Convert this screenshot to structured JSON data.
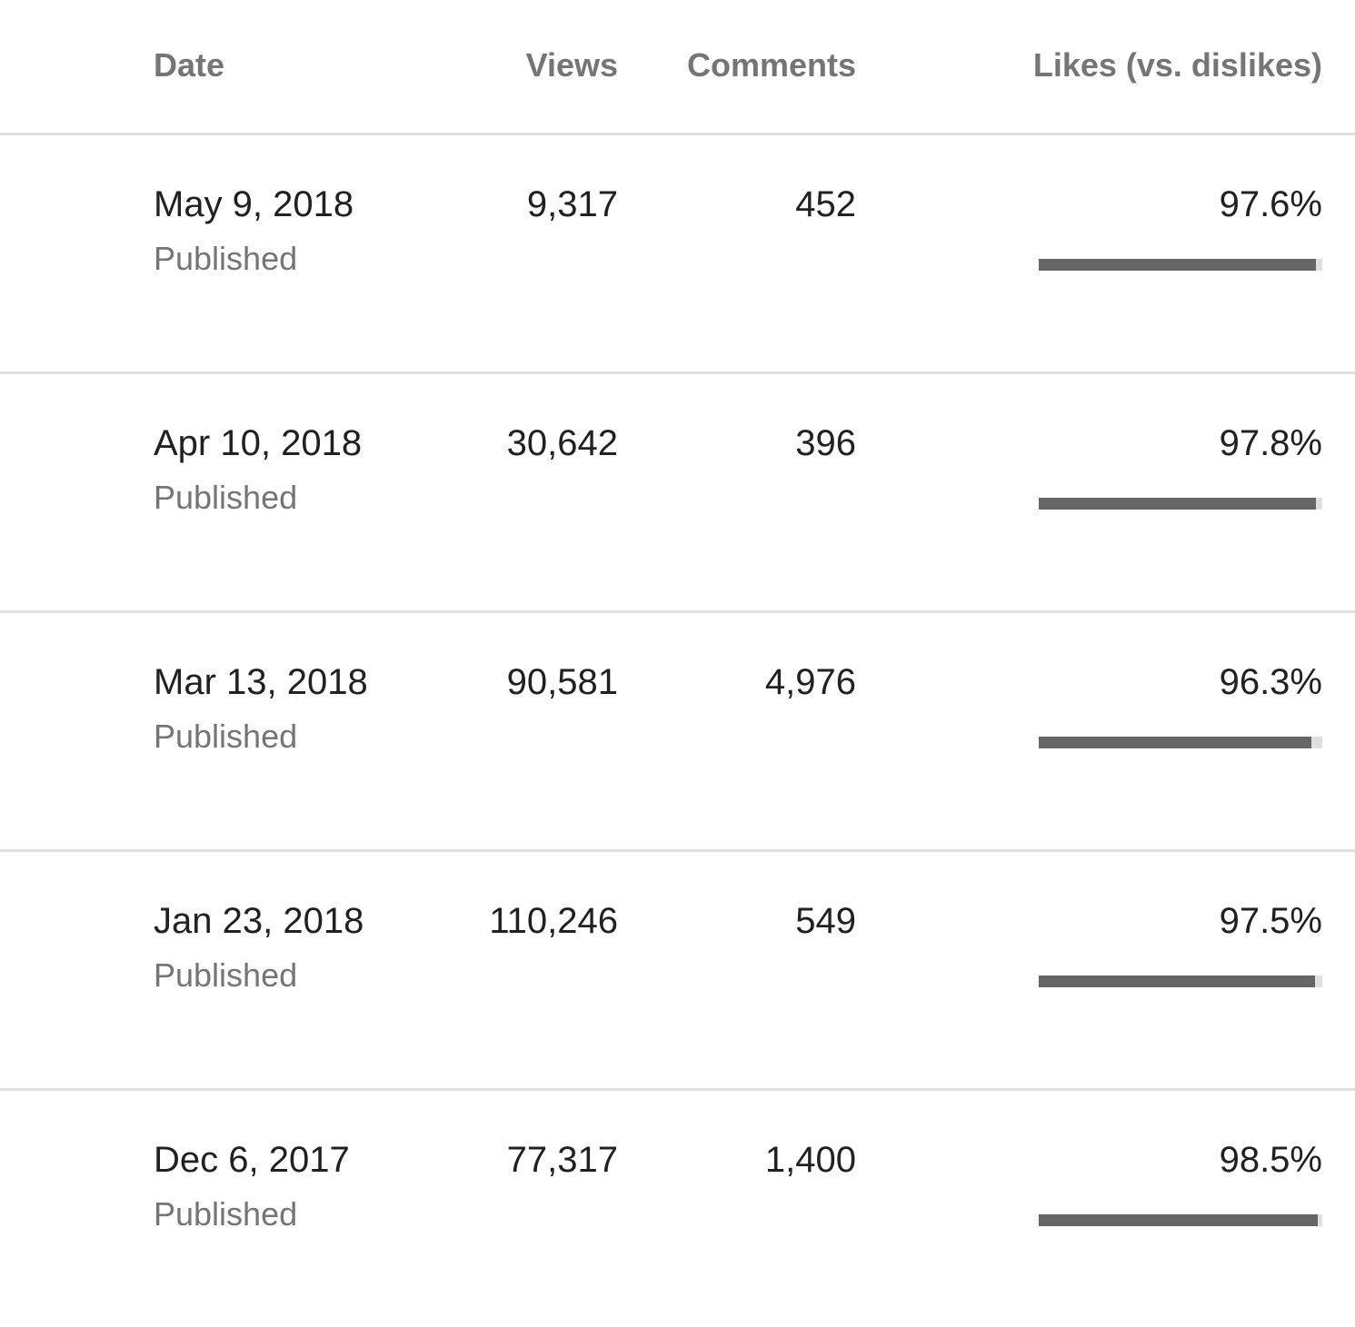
{
  "header": {
    "date": "Date",
    "views": "Views",
    "comments": "Comments",
    "likes": "Likes (vs. dislikes)"
  },
  "rows": [
    {
      "date": "May 9, 2018",
      "status": "Published",
      "views": "9,317",
      "comments": "452",
      "likes": "97.6%",
      "likes_pct": 97.6
    },
    {
      "date": "Apr 10, 2018",
      "status": "Published",
      "views": "30,642",
      "comments": "396",
      "likes": "97.8%",
      "likes_pct": 97.8
    },
    {
      "date": "Mar 13, 2018",
      "status": "Published",
      "views": "90,581",
      "comments": "4,976",
      "likes": "96.3%",
      "likes_pct": 96.3
    },
    {
      "date": "Jan 23, 2018",
      "status": "Published",
      "views": "110,246",
      "comments": "549",
      "likes": "97.5%",
      "likes_pct": 97.5
    },
    {
      "date": "Dec 6, 2017",
      "status": "Published",
      "views": "77,317",
      "comments": "1,400",
      "likes": "98.5%",
      "likes_pct": 98.5
    }
  ],
  "colors": {
    "bar_fill": "#666666",
    "bar_track": "#e0e0e0",
    "divider": "#e0e0e0",
    "primary_text": "#212121",
    "secondary_text": "#757575"
  }
}
